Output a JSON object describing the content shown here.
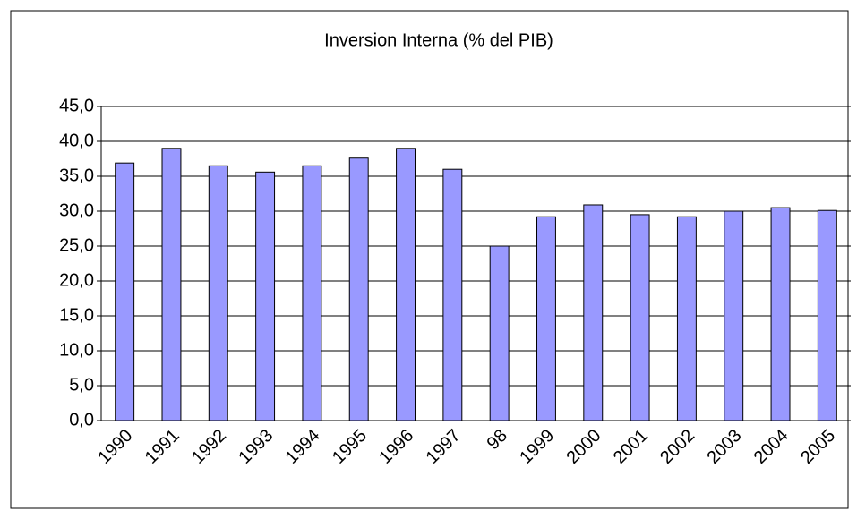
{
  "chart_data": {
    "type": "bar",
    "title": "Inversion Interna (% del PIB)",
    "categories": [
      "1990",
      "1991",
      "1992",
      "1993",
      "1994",
      "1995",
      "1996",
      "1997",
      "98",
      "1999",
      "2000",
      "2001",
      "2002",
      "2003",
      "2004",
      "2005"
    ],
    "values": [
      36.9,
      39.0,
      36.5,
      35.6,
      36.5,
      37.6,
      39.0,
      36.0,
      25.0,
      29.2,
      30.9,
      29.5,
      29.2,
      30.0,
      30.5,
      30.1
    ],
    "color": "#9999ff",
    "ylim": [
      0,
      45
    ],
    "yticks": [
      {
        "value": 0,
        "label": "0,0"
      },
      {
        "value": 5,
        "label": "5,0"
      },
      {
        "value": 10,
        "label": "10,0"
      },
      {
        "value": 15,
        "label": "15,0"
      },
      {
        "value": 20,
        "label": "20,0"
      },
      {
        "value": 25,
        "label": "25,0"
      },
      {
        "value": 30,
        "label": "30,0"
      },
      {
        "value": 35,
        "label": "35,0"
      },
      {
        "value": 40,
        "label": "40,0"
      },
      {
        "value": 45,
        "label": "45,0"
      }
    ],
    "grid": true
  }
}
